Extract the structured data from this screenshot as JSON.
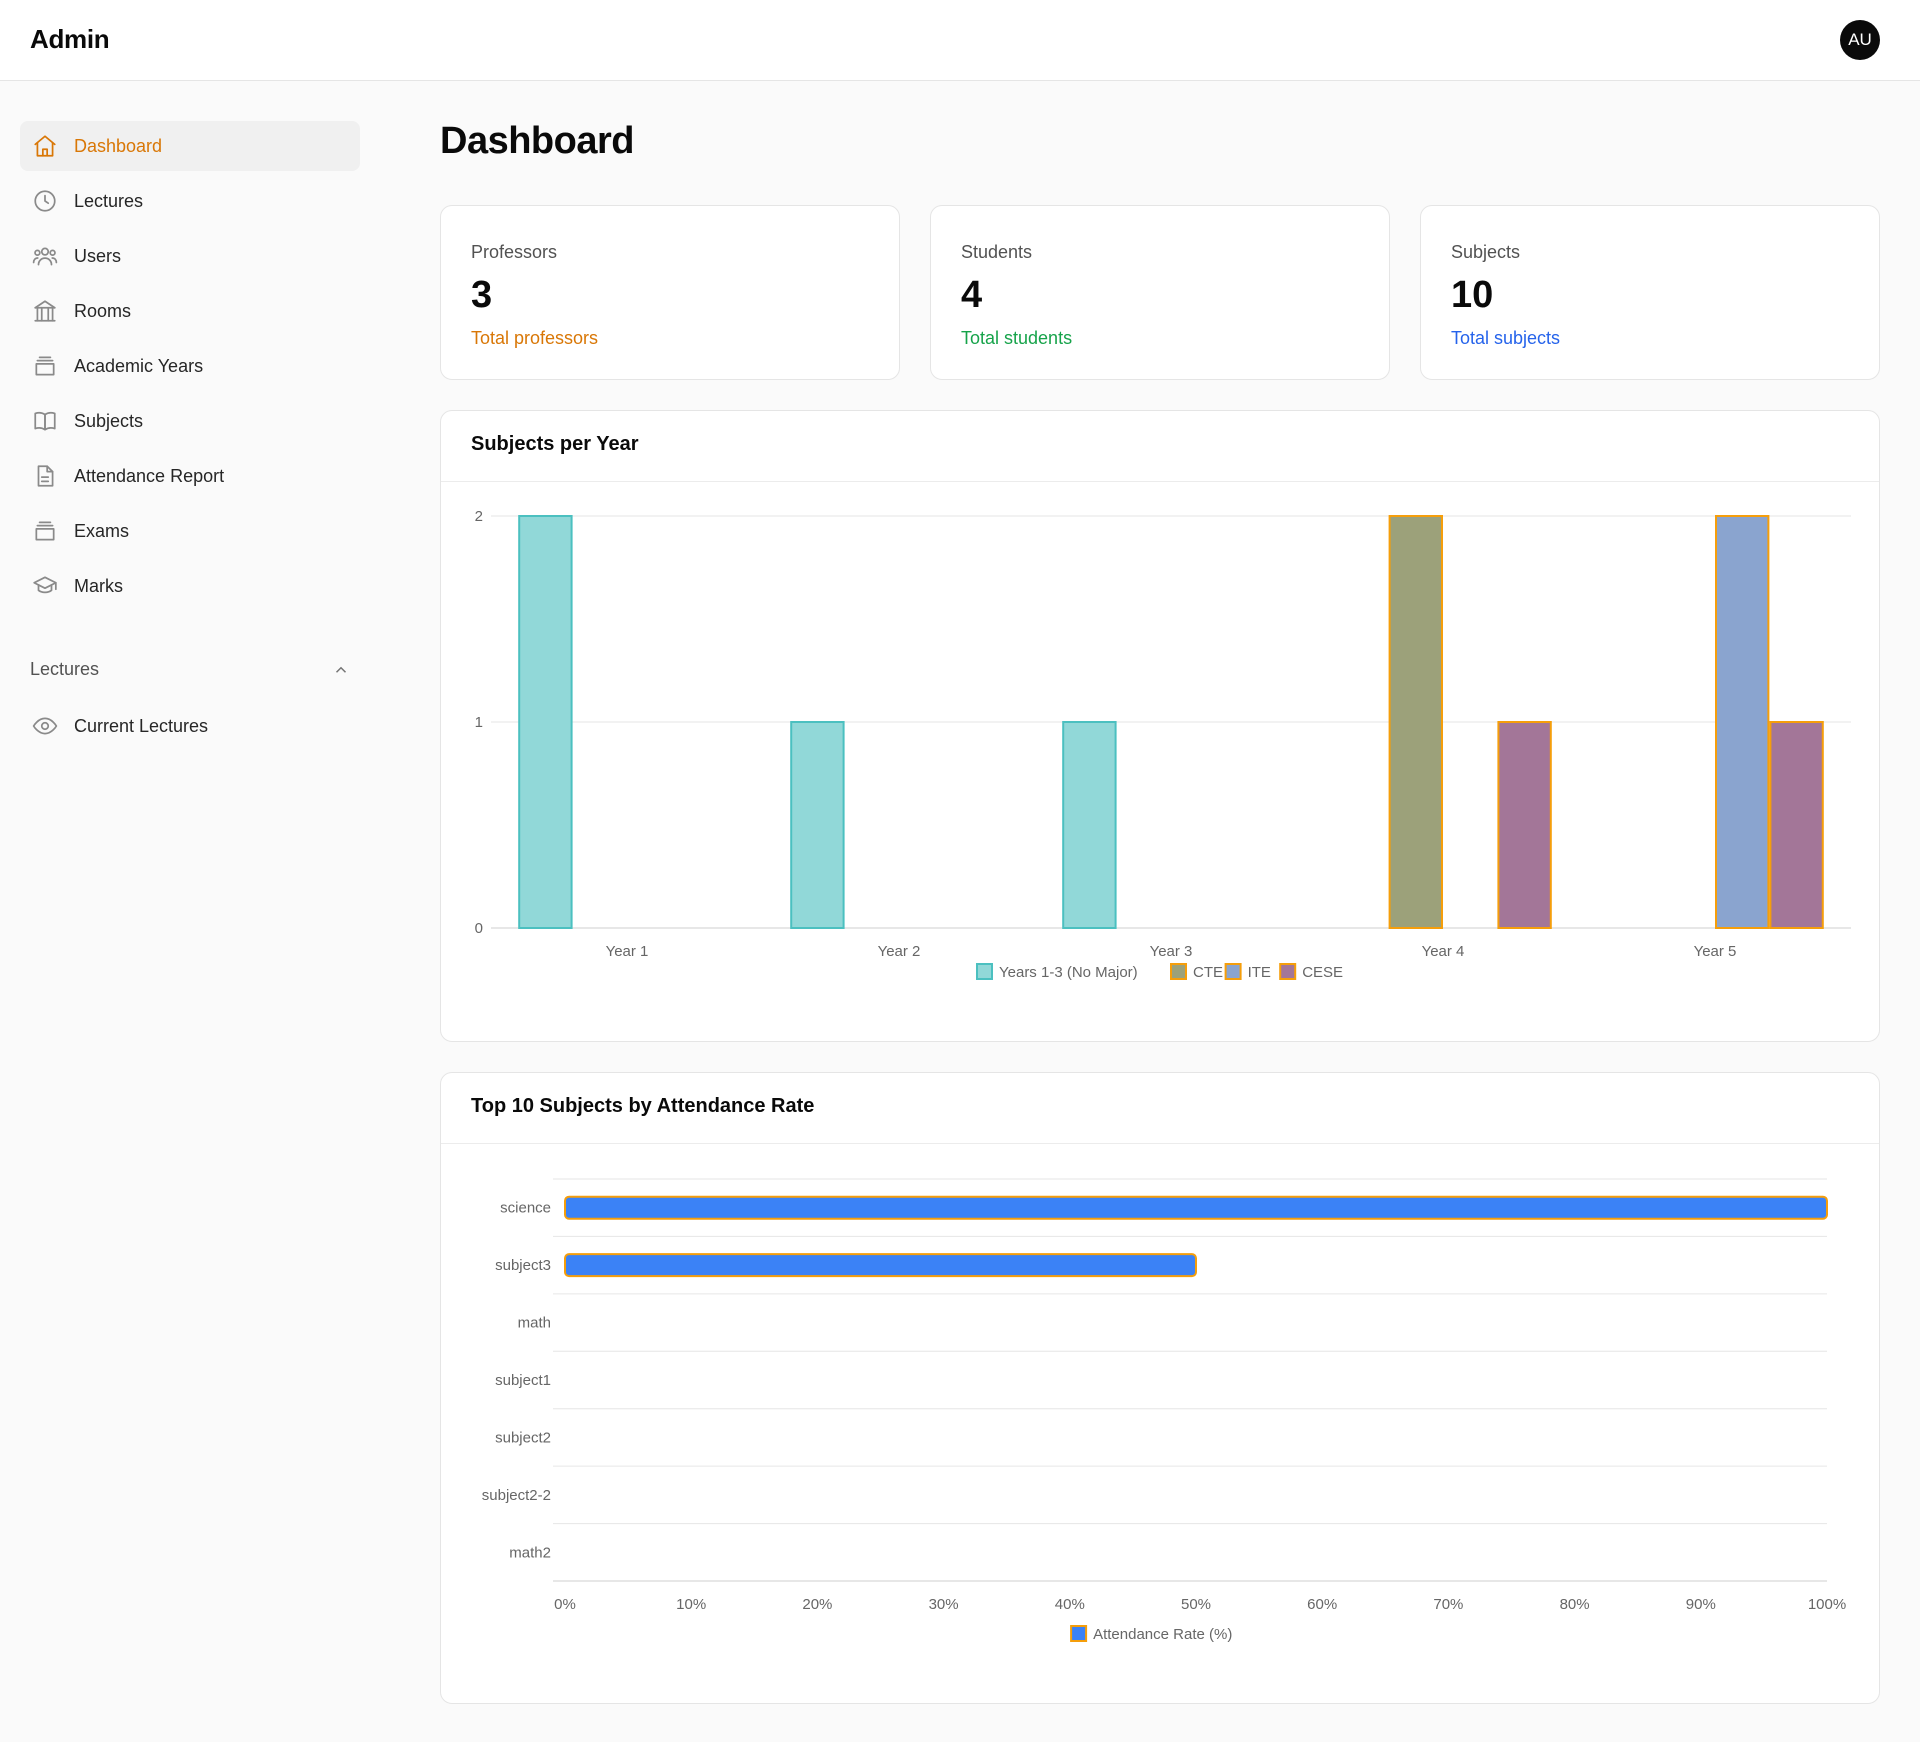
{
  "header": {
    "brand": "Admin",
    "avatar_initials": "AU"
  },
  "sidebar": {
    "items": [
      {
        "label": "Dashboard",
        "icon": "home-icon",
        "active": true
      },
      {
        "label": "Lectures",
        "icon": "clock-icon"
      },
      {
        "label": "Users",
        "icon": "users-icon"
      },
      {
        "label": "Rooms",
        "icon": "building-icon"
      },
      {
        "label": "Academic Years",
        "icon": "archive-icon"
      },
      {
        "label": "Subjects",
        "icon": "book-icon"
      },
      {
        "label": "Attendance Report",
        "icon": "file-icon"
      },
      {
        "label": "Exams",
        "icon": "archive-icon"
      },
      {
        "label": "Marks",
        "icon": "graduation-cap-icon"
      }
    ],
    "section": {
      "label": "Lectures",
      "expanded": true
    },
    "section_items": [
      {
        "label": "Current Lectures",
        "icon": "eye-icon"
      }
    ]
  },
  "main": {
    "title": "Dashboard",
    "stats": [
      {
        "label": "Professors",
        "value": "3",
        "sub": "Total professors",
        "color": "#d97706"
      },
      {
        "label": "Students",
        "value": "4",
        "sub": "Total students",
        "color": "#16a34a"
      },
      {
        "label": "Subjects",
        "value": "10",
        "sub": "Total subjects",
        "color": "#2563eb"
      }
    ]
  },
  "chart_data": [
    {
      "type": "bar",
      "title": "Subjects per Year",
      "categories": [
        "Year 1",
        "Year 2",
        "Year 3",
        "Year 4",
        "Year 5"
      ],
      "series": [
        {
          "name": "Years 1-3 (No Major)",
          "values": [
            2,
            1,
            1,
            0,
            0
          ],
          "fill": "#91d8d8",
          "stroke": "#4bc0c0"
        },
        {
          "name": "CTE",
          "values": [
            0,
            0,
            0,
            2,
            0
          ],
          "fill": "#9ca17a",
          "stroke": "#f59e0b"
        },
        {
          "name": "ITE",
          "values": [
            0,
            0,
            0,
            0,
            2
          ],
          "fill": "#8aa4cf",
          "stroke": "#f59e0b"
        },
        {
          "name": "CESE",
          "values": [
            0,
            0,
            0,
            1,
            1
          ],
          "fill": "#a37698",
          "stroke": "#f59e0b"
        }
      ],
      "ylim": [
        0,
        2
      ],
      "yticks": [
        "0",
        "1",
        "2"
      ]
    },
    {
      "type": "bar",
      "orientation": "horizontal",
      "title": "Top 10 Subjects by Attendance Rate",
      "categories": [
        "science",
        "subject3",
        "math",
        "subject1",
        "subject2",
        "subject2-2",
        "math2"
      ],
      "series": [
        {
          "name": "Attendance Rate (%)",
          "values": [
            100,
            50,
            0,
            0,
            0,
            0,
            0
          ],
          "fill": "#3b82f6",
          "stroke": "#f59e0b"
        }
      ],
      "xlim": [
        0,
        100
      ],
      "xticks": [
        "0%",
        "10%",
        "20%",
        "30%",
        "40%",
        "50%",
        "60%",
        "70%",
        "80%",
        "90%",
        "100%"
      ]
    }
  ]
}
